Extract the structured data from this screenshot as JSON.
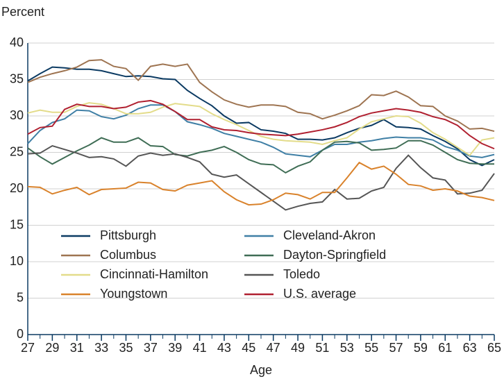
{
  "chart_data": {
    "type": "line",
    "y_label": "Percent",
    "x_label": "Age",
    "x": [
      27,
      28,
      29,
      30,
      31,
      32,
      33,
      34,
      35,
      36,
      37,
      38,
      39,
      40,
      41,
      42,
      43,
      44,
      45,
      46,
      47,
      48,
      49,
      50,
      51,
      52,
      53,
      54,
      55,
      56,
      57,
      58,
      59,
      60,
      61,
      62,
      63,
      64,
      65
    ],
    "xlim": [
      27,
      65
    ],
    "xticks": [
      27,
      29,
      31,
      33,
      35,
      37,
      39,
      41,
      43,
      45,
      47,
      49,
      51,
      53,
      55,
      57,
      59,
      61,
      63,
      65
    ],
    "ylim": [
      0,
      40
    ],
    "yticks": [
      0,
      5,
      10,
      15,
      20,
      25,
      30,
      35,
      40
    ],
    "grid": true,
    "series": [
      {
        "name": "Pittsburgh",
        "color": "#0b3a62",
        "values": [
          34.8,
          35.8,
          36.7,
          36.6,
          36.4,
          36.4,
          36.2,
          35.8,
          35.4,
          35.5,
          35.4,
          35.1,
          35.0,
          33.5,
          32.4,
          31.4,
          30.0,
          29.0,
          29.1,
          28.1,
          27.9,
          27.6,
          26.8,
          26.8,
          26.7,
          27.0,
          27.7,
          28.3,
          28.7,
          29.5,
          28.5,
          28.4,
          28.2,
          27.3,
          26.5,
          25.5,
          24.0,
          23.2,
          24.0
        ]
      },
      {
        "name": "Cleveland-Akron",
        "color": "#3f7fa5",
        "values": [
          26.2,
          28.0,
          29.1,
          29.6,
          30.8,
          30.7,
          29.9,
          29.6,
          30.1,
          31.0,
          31.5,
          31.5,
          30.6,
          29.2,
          28.8,
          28.3,
          27.6,
          27.2,
          26.8,
          26.4,
          25.7,
          24.8,
          24.6,
          24.4,
          25.3,
          26.1,
          26.1,
          26.4,
          26.6,
          26.9,
          27.1,
          27.0,
          27.0,
          26.7,
          25.8,
          25.3,
          24.5,
          24.3,
          24.7
        ]
      },
      {
        "name": "Columbus",
        "color": "#9e7451",
        "values": [
          34.6,
          35.3,
          35.8,
          36.2,
          36.7,
          37.6,
          37.7,
          36.8,
          36.5,
          34.9,
          36.8,
          37.1,
          36.8,
          37.1,
          34.6,
          33.3,
          32.2,
          31.6,
          31.2,
          31.5,
          31.5,
          31.3,
          30.5,
          30.3,
          29.6,
          30.1,
          30.7,
          31.4,
          32.9,
          32.8,
          33.4,
          32.6,
          31.4,
          31.3,
          30.0,
          29.3,
          28.2,
          28.3,
          27.9
        ]
      },
      {
        "name": "Dayton-Springfield",
        "color": "#3f6d55",
        "values": [
          25.6,
          24.4,
          23.4,
          24.3,
          25.2,
          26.0,
          27.0,
          26.4,
          26.4,
          27.0,
          25.9,
          25.8,
          24.7,
          24.5,
          25.0,
          25.3,
          25.8,
          25.0,
          24.0,
          23.4,
          23.3,
          22.2,
          23.1,
          23.7,
          25.3,
          26.4,
          26.5,
          26.3,
          25.3,
          25.4,
          25.6,
          26.6,
          26.6,
          26.0,
          25.0,
          24.0,
          23.5,
          23.4,
          23.4
        ]
      },
      {
        "name": "Cincinnati-Hamilton",
        "color": "#e3dc8a",
        "values": [
          30.4,
          30.8,
          30.5,
          30.5,
          31.3,
          31.8,
          31.6,
          31.0,
          30.3,
          30.3,
          30.5,
          31.2,
          31.7,
          31.5,
          31.3,
          30.3,
          29.5,
          28.8,
          28.0,
          27.2,
          26.8,
          26.6,
          26.5,
          26.4,
          26.1,
          26.6,
          27.0,
          28.2,
          29.2,
          29.6,
          30.0,
          29.9,
          29.0,
          27.7,
          26.8,
          25.7,
          24.6,
          26.7,
          27.0
        ]
      },
      {
        "name": "Toledo",
        "color": "#555555",
        "values": [
          24.8,
          24.9,
          25.9,
          25.4,
          24.9,
          24.3,
          24.4,
          24.1,
          23.1,
          24.5,
          24.9,
          24.6,
          24.8,
          24.3,
          23.7,
          22.0,
          21.6,
          21.9,
          20.7,
          19.5,
          18.3,
          17.1,
          17.6,
          18.0,
          18.2,
          19.9,
          18.6,
          18.7,
          19.7,
          20.2,
          22.8,
          24.6,
          22.9,
          21.5,
          21.2,
          19.3,
          19.4,
          19.8,
          22.1
        ]
      },
      {
        "name": "Youngstown",
        "color": "#d9822b",
        "values": [
          20.3,
          20.2,
          19.3,
          19.8,
          20.2,
          19.2,
          19.9,
          20.0,
          20.1,
          20.9,
          20.8,
          19.9,
          19.7,
          20.5,
          20.8,
          21.1,
          19.6,
          18.5,
          17.8,
          17.9,
          18.5,
          19.4,
          19.2,
          18.6,
          19.5,
          19.5,
          21.5,
          23.6,
          22.7,
          23.1,
          22.0,
          20.6,
          20.4,
          19.8,
          20.0,
          19.7,
          19.0,
          18.8,
          18.4
        ]
      },
      {
        "name": "U.S. average",
        "color": "#b02030",
        "values": [
          27.5,
          28.4,
          28.6,
          30.9,
          31.6,
          31.3,
          31.3,
          31.0,
          31.2,
          31.9,
          32.1,
          31.6,
          30.6,
          29.5,
          29.5,
          28.5,
          28.1,
          28.0,
          27.7,
          27.5,
          27.4,
          27.3,
          27.5,
          27.8,
          28.1,
          28.5,
          29.1,
          29.9,
          30.4,
          30.7,
          31.0,
          30.8,
          30.5,
          29.9,
          29.5,
          28.7,
          27.3,
          26.2,
          25.5
        ]
      }
    ]
  }
}
